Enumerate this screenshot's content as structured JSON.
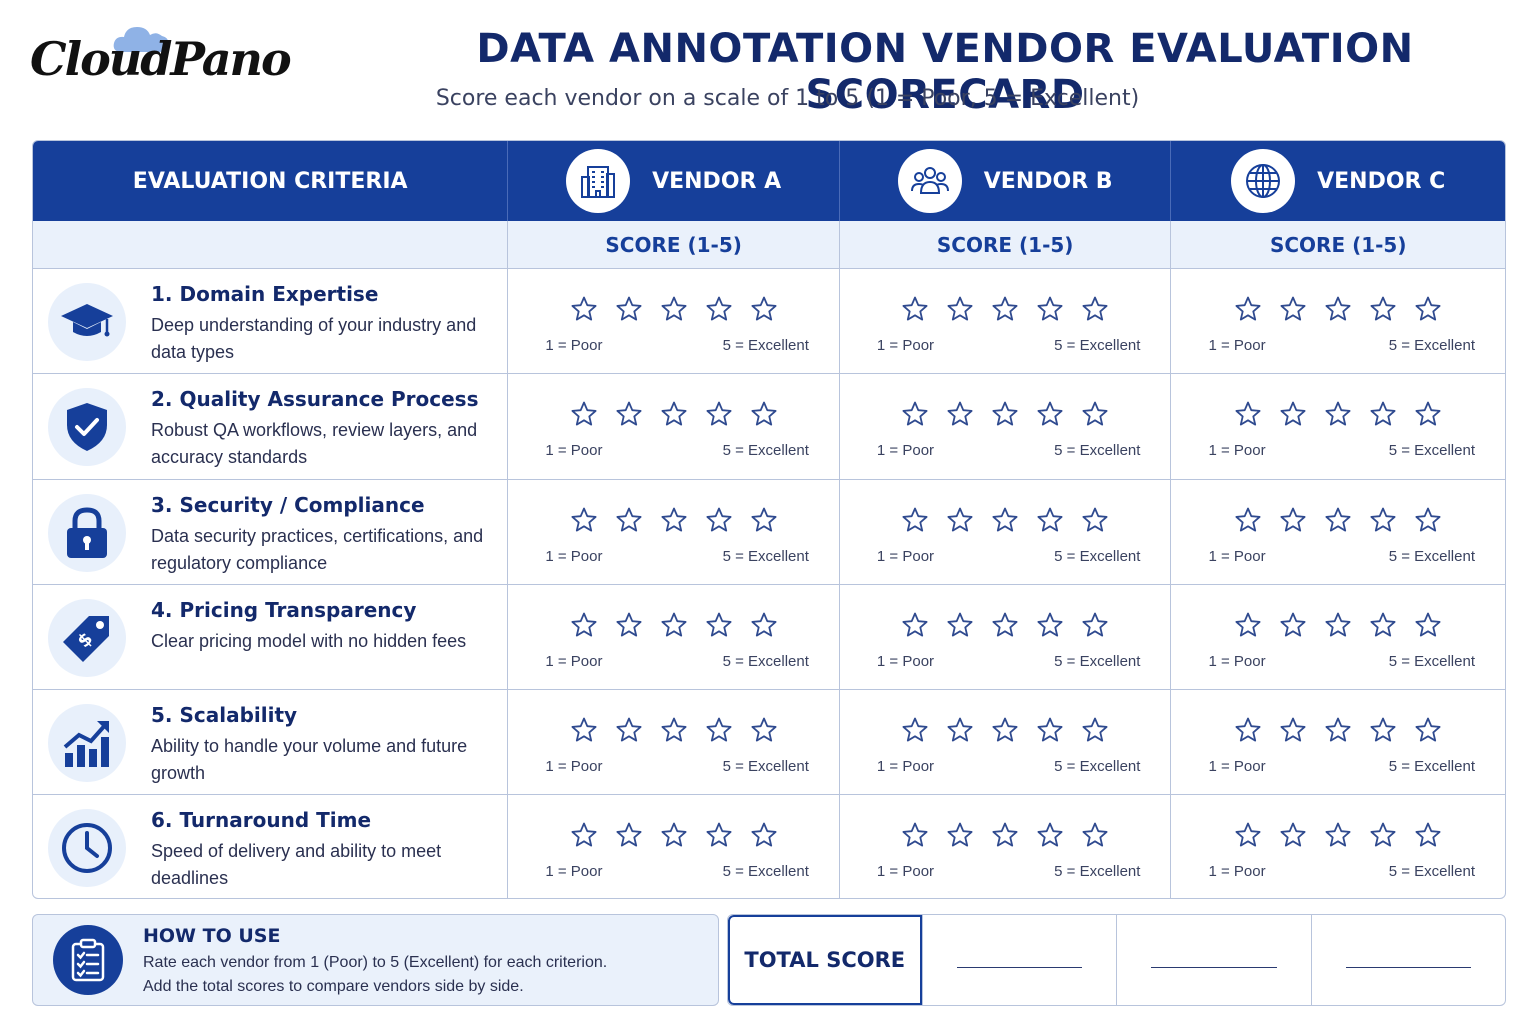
{
  "brand": {
    "logo_text": "CloudPano"
  },
  "header": {
    "title": "DATA ANNOTATION VENDOR EVALUATION SCORECARD",
    "subtitle": "Score each vendor on a scale of 1 to 5 (1 = Poor, 5 = Excellent)"
  },
  "table": {
    "criteria_header": "EVALUATION CRITERIA",
    "vendors": [
      {
        "name": "VENDOR A",
        "icon": "building-icon"
      },
      {
        "name": "VENDOR B",
        "icon": "team-icon"
      },
      {
        "name": "VENDOR C",
        "icon": "globe-icon"
      }
    ],
    "score_label": "SCORE (1-5)",
    "scale_low": "1 = Poor",
    "scale_high": "5 = Excellent",
    "stars_per_rating": 5,
    "criteria": [
      {
        "title": "1. Domain Expertise",
        "desc": "Deep understanding of your industry and data types",
        "icon": "graduation-cap-icon"
      },
      {
        "title": "2. Quality Assurance Process",
        "desc": "Robust QA workflows, review layers, and accuracy standards",
        "icon": "shield-check-icon"
      },
      {
        "title": "3. Security / Compliance",
        "desc": "Data security practices, certifications, and regulatory compliance",
        "icon": "lock-icon"
      },
      {
        "title": "4. Pricing Transparency",
        "desc": "Clear pricing model with no hidden fees",
        "icon": "price-tag-icon"
      },
      {
        "title": "5. Scalability",
        "desc": "Ability to handle your volume and future growth",
        "icon": "growth-chart-icon"
      },
      {
        "title": "6. Turnaround Time",
        "desc": "Speed of delivery and ability to meet deadlines",
        "icon": "clock-icon"
      }
    ]
  },
  "how_to_use": {
    "title": "HOW TO USE",
    "line1": "Rate each vendor from 1 (Poor) to 5 (Excellent) for each criterion.",
    "line2": "Add the total scores to compare vendors side by side.",
    "icon": "clipboard-checklist-icon"
  },
  "total": {
    "label": "TOTAL SCORE"
  },
  "colors": {
    "primary": "#163f9a",
    "title": "#13296b",
    "light_bg": "#eaf1fb",
    "border": "#b8c4dc"
  }
}
